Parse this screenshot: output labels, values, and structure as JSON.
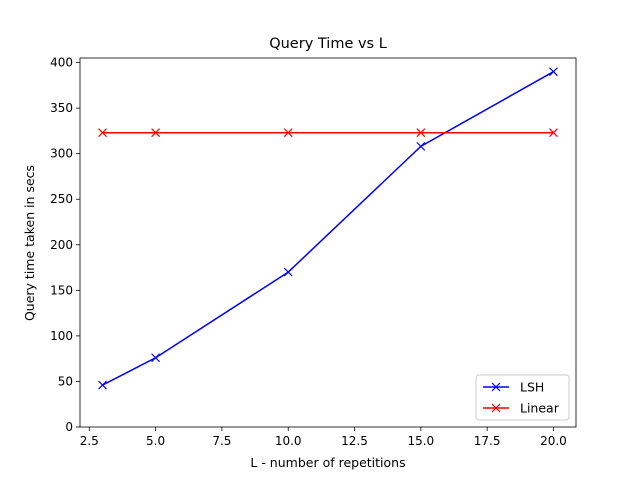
{
  "chart_data": {
    "type": "line",
    "title": "Query Time vs L",
    "xlabel": "L - number of repetitions",
    "ylabel": "Query time taken in secs",
    "xlim": [
      2.15,
      20.85
    ],
    "ylim": [
      0,
      405
    ],
    "xticks": [
      2.5,
      5.0,
      7.5,
      10.0,
      12.5,
      15.0,
      17.5,
      20.0
    ],
    "xtick_labels": [
      "2.5",
      "5.0",
      "7.5",
      "10.0",
      "12.5",
      "15.0",
      "17.5",
      "20.0"
    ],
    "yticks": [
      0,
      50,
      100,
      150,
      200,
      250,
      300,
      350,
      400
    ],
    "ytick_labels": [
      "0",
      "50",
      "100",
      "150",
      "200",
      "250",
      "300",
      "350",
      "400"
    ],
    "grid": false,
    "legend_position": "lower-right",
    "series": [
      {
        "name": "LSH",
        "color": "#0000ff",
        "marker": "x",
        "x": [
          3,
          5,
          10,
          15,
          20
        ],
        "y": [
          46,
          76,
          170,
          308,
          390
        ]
      },
      {
        "name": "Linear",
        "color": "#ff0000",
        "marker": "x",
        "x": [
          3,
          5,
          10,
          15,
          20
        ],
        "y": [
          323,
          323,
          323,
          323,
          323
        ]
      }
    ]
  }
}
